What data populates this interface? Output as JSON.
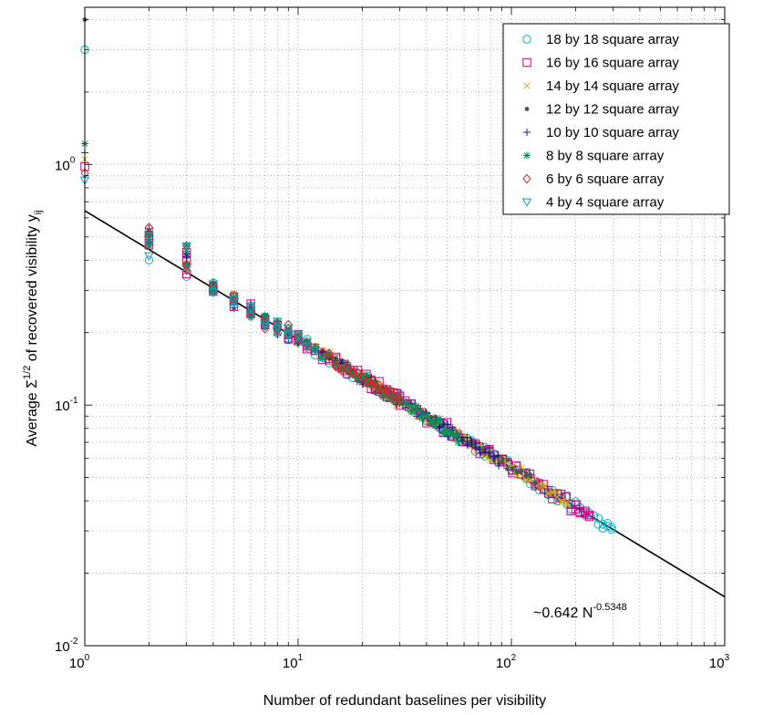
{
  "chart_data": {
    "type": "scatter",
    "x_scale": "log",
    "y_scale": "log",
    "xlim": [
      1,
      1000
    ],
    "ylim": [
      0.01,
      4.5
    ],
    "grid": true,
    "legend_position": "top-right",
    "xlabel": "Number of redundant baselines per visibility",
    "ylabel": {
      "prefix": "Average Σ",
      "exponent": "1/2",
      "middle": " of recovered visibility y",
      "subscript": "ij"
    },
    "x_ticks": [
      {
        "value": 1,
        "base": "10",
        "exp": "0"
      },
      {
        "value": 10,
        "base": "10",
        "exp": "1"
      },
      {
        "value": 100,
        "base": "10",
        "exp": "2"
      },
      {
        "value": 1000,
        "base": "10",
        "exp": "3"
      }
    ],
    "y_ticks": [
      {
        "value": 0.01,
        "base": "10",
        "exp": "-2"
      },
      {
        "value": 0.1,
        "base": "10",
        "exp": "-1"
      },
      {
        "value": 1,
        "base": "10",
        "exp": "0"
      }
    ],
    "fit": {
      "coefficient": 0.642,
      "exponent": -0.5348,
      "label_prefix": "~0.642 N",
      "label_exp": "-0.5348",
      "color": "#000000"
    },
    "series": [
      {
        "name": "18 by 18 square array",
        "marker": "circle",
        "color": "#00b3c8",
        "side": 18
      },
      {
        "name": "16 by 16 square array",
        "marker": "square",
        "color": "#c8007d",
        "side": 16
      },
      {
        "name": "14 by 14 square array",
        "marker": "x",
        "color": "#c8b400",
        "side": 14
      },
      {
        "name": "12 by 12 square array",
        "marker": "dot",
        "color": "#555555",
        "side": 12
      },
      {
        "name": "10 by 10 square array",
        "marker": "plus",
        "color": "#1a1a8c",
        "side": 10
      },
      {
        "name": "8 by 8 square array",
        "marker": "star",
        "color": "#00915a",
        "side": 8
      },
      {
        "name": "6 by 6 square array",
        "marker": "diamond",
        "color": "#d62728",
        "side": 6
      },
      {
        "name": "4 by 4 square array",
        "marker": "triangle-down",
        "color": "#00a0b4",
        "side": 4
      }
    ],
    "single_baseline_values": {
      "18 by 18 square array": 3.0,
      "16 by 16 square array": 0.98,
      "14 by 14 square array": 1.05,
      "12 by 12 square array": 4.0,
      "10 by 10 square array": 1.12,
      "8 by 8 square array": 1.22,
      "6 by 6 square array": 0.92,
      "4 by 4 square array": 0.86
    },
    "max_redundancy": {
      "18 by 18 square array": 300,
      "16 by 16 square array": 240,
      "14 by 14 square array": 182,
      "12 by 12 square array": 132,
      "10 by 10 square array": 90,
      "8 by 8 square array": 56,
      "6 by 6 square array": 30,
      "4 by 4 square array": 12
    }
  }
}
